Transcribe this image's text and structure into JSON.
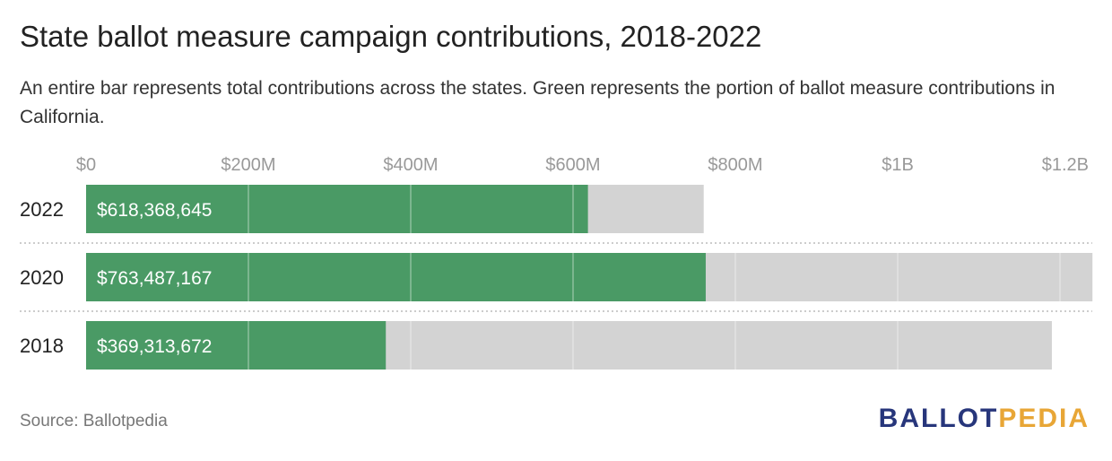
{
  "title": "State ballot measure campaign contributions, 2018-2022",
  "subtitle": "An entire bar represents total contributions across the states. Green represents the portion of ballot measure contributions in California.",
  "source": "Source: Ballotpedia",
  "logo": {
    "part1": "BALLOT",
    "part2": "PEDIA"
  },
  "colors": {
    "california": "#4a9a65",
    "total": "#d3d3d3",
    "axis_text": "#999999",
    "gridline": "#ffffff",
    "separator": "#cccccc",
    "logo_ballot": "#27367b",
    "logo_pedia": "#e8a636"
  },
  "chart_data": {
    "type": "bar",
    "orientation": "horizontal",
    "stacked": "overlay",
    "title": "State ballot measure campaign contributions, 2018-2022",
    "categories": [
      "2022",
      "2020",
      "2018"
    ],
    "series": [
      {
        "name": "Total contributions across the states",
        "values": [
          761000000,
          1240000000,
          1190000000
        ]
      },
      {
        "name": "California contributions",
        "values": [
          618368645,
          763487167,
          369313672
        ]
      }
    ],
    "data_labels": [
      "$618,368,645",
      "$763,487,167",
      "$369,313,672"
    ],
    "xlim": [
      0,
      1200000000
    ],
    "xticks": [
      0,
      200000000,
      400000000,
      600000000,
      800000000,
      1000000000,
      1200000000
    ],
    "xtick_labels": [
      "$0",
      "$200M",
      "$400M",
      "$600M",
      "$800M",
      "$1B",
      "$1.2B"
    ],
    "xlabel": "",
    "ylabel": "",
    "legend": "none",
    "axis_position": "top"
  }
}
